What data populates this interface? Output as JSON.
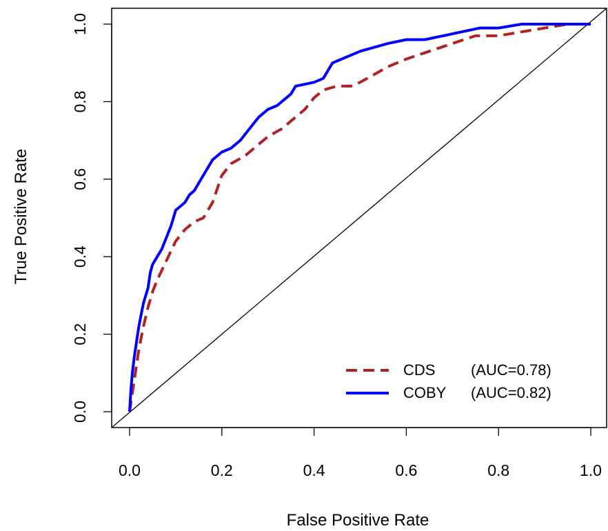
{
  "chart_data": {
    "type": "line",
    "title": "",
    "xlabel": "False Positive Rate",
    "ylabel": "True Positive Rate",
    "xlim": [
      0,
      1
    ],
    "ylim": [
      0,
      1
    ],
    "x_ticks": [
      "0.0",
      "0.2",
      "0.4",
      "0.6",
      "0.8",
      "1.0"
    ],
    "y_ticks": [
      "0.0",
      "0.2",
      "0.4",
      "0.6",
      "0.8",
      "1.0"
    ],
    "grid": false,
    "legend_position": "bottom-right",
    "reference_line": {
      "x": [
        0,
        1
      ],
      "y": [
        0,
        1
      ],
      "color": "#000000"
    },
    "series": [
      {
        "name": "CDS",
        "auc_label": "(AUC=0.78)",
        "color": "#B22222",
        "dash": "dashed",
        "x": [
          0,
          0.005,
          0.01,
          0.015,
          0.02,
          0.03,
          0.04,
          0.05,
          0.06,
          0.08,
          0.1,
          0.12,
          0.14,
          0.16,
          0.18,
          0.2,
          0.22,
          0.25,
          0.28,
          0.3,
          0.33,
          0.36,
          0.38,
          0.4,
          0.42,
          0.45,
          0.48,
          0.5,
          0.53,
          0.56,
          0.6,
          0.65,
          0.7,
          0.75,
          0.8,
          0.85,
          0.9,
          0.95,
          1.0
        ],
        "y": [
          0,
          0.04,
          0.08,
          0.12,
          0.16,
          0.22,
          0.27,
          0.31,
          0.34,
          0.39,
          0.44,
          0.47,
          0.49,
          0.5,
          0.54,
          0.61,
          0.64,
          0.66,
          0.69,
          0.71,
          0.73,
          0.76,
          0.78,
          0.81,
          0.83,
          0.84,
          0.84,
          0.85,
          0.87,
          0.89,
          0.91,
          0.93,
          0.95,
          0.97,
          0.97,
          0.98,
          0.99,
          1.0,
          1.0
        ]
      },
      {
        "name": "COBY",
        "auc_label": "(AUC=0.82)",
        "color": "#0000FF",
        "dash": "solid",
        "x": [
          0,
          0.003,
          0.006,
          0.01,
          0.015,
          0.02,
          0.025,
          0.03,
          0.04,
          0.045,
          0.05,
          0.06,
          0.07,
          0.08,
          0.09,
          0.1,
          0.12,
          0.13,
          0.14,
          0.15,
          0.16,
          0.18,
          0.2,
          0.22,
          0.24,
          0.26,
          0.28,
          0.3,
          0.32,
          0.34,
          0.35,
          0.36,
          0.4,
          0.42,
          0.43,
          0.44,
          0.46,
          0.5,
          0.53,
          0.56,
          0.6,
          0.64,
          0.68,
          0.72,
          0.76,
          0.8,
          0.85,
          0.9,
          0.95,
          1.0
        ],
        "y": [
          0,
          0.06,
          0.1,
          0.14,
          0.18,
          0.22,
          0.25,
          0.28,
          0.32,
          0.36,
          0.38,
          0.4,
          0.42,
          0.45,
          0.48,
          0.52,
          0.54,
          0.56,
          0.57,
          0.59,
          0.61,
          0.65,
          0.67,
          0.68,
          0.7,
          0.73,
          0.76,
          0.78,
          0.79,
          0.81,
          0.82,
          0.84,
          0.85,
          0.86,
          0.88,
          0.9,
          0.91,
          0.93,
          0.94,
          0.95,
          0.96,
          0.96,
          0.97,
          0.98,
          0.99,
          0.99,
          1.0,
          1.0,
          1.0,
          1.0
        ]
      }
    ]
  }
}
